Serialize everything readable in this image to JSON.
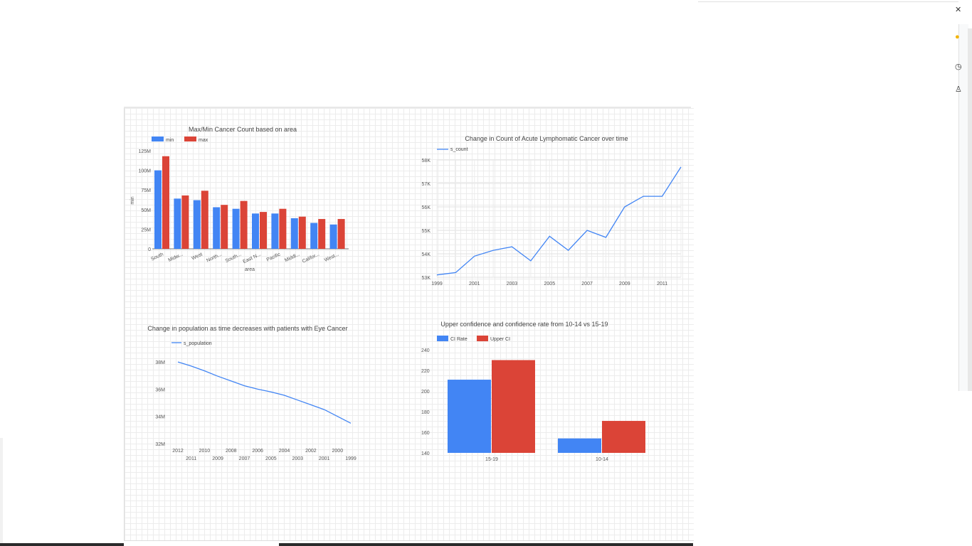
{
  "chart_data": [
    {
      "type": "bar",
      "title": "Max/Min Cancer Count based on area",
      "xlabel": "area",
      "ylabel": "min",
      "legend_position": "top-left",
      "categories": [
        "South",
        "Midw...",
        "West",
        "North...",
        "South...",
        "East N...",
        "Pacific",
        "Middl...",
        "Califor...",
        "West..."
      ],
      "series": [
        {
          "name": "min",
          "color": "#4285f4",
          "values": [
            100,
            64,
            62,
            53,
            51,
            45,
            45,
            39,
            33,
            31
          ]
        },
        {
          "name": "max",
          "color": "#db4437",
          "values": [
            118,
            68,
            74,
            56,
            61,
            47,
            51,
            41,
            38,
            38
          ]
        }
      ],
      "yticks": [
        "0",
        "25M",
        "50M",
        "75M",
        "100M",
        "125M"
      ],
      "ylim": [
        0,
        125
      ],
      "grid": false
    },
    {
      "type": "line",
      "title": "Change in Count of Acute Lymphomatic Cancer over time",
      "legend_position": "top-left",
      "series": [
        {
          "name": "s_count",
          "color": "#4285f4"
        }
      ],
      "x": [
        1999,
        2000,
        2001,
        2002,
        2003,
        2004,
        2005,
        2006,
        2007,
        2008,
        2009,
        2010,
        2011,
        2012
      ],
      "values": [
        53.1,
        53.2,
        53.9,
        54.15,
        54.3,
        53.7,
        54.75,
        54.15,
        55.0,
        54.7,
        56.0,
        56.45,
        56.45,
        57.7
      ],
      "xticks": [
        "1999",
        "2001",
        "2003",
        "2005",
        "2007",
        "2009",
        "2011"
      ],
      "yticks": [
        "53K",
        "54K",
        "55K",
        "56K",
        "57K",
        "58K"
      ],
      "ylim": [
        53,
        58
      ],
      "grid": true
    },
    {
      "type": "line",
      "title": "Change in population as time decreases with patients with Eye Cancer",
      "legend_position": "top-left",
      "series": [
        {
          "name": "s_population",
          "color": "#4285f4"
        }
      ],
      "x": [
        2012,
        2011,
        2010,
        2009,
        2008,
        2007,
        2006,
        2005,
        2004,
        2003,
        2002,
        2001,
        2000,
        1999
      ],
      "values": [
        38.0,
        37.7,
        37.35,
        36.95,
        36.6,
        36.25,
        36.0,
        35.8,
        35.55,
        35.2,
        34.85,
        34.5,
        34.0,
        33.5
      ],
      "xticks_top": [
        "2012",
        "2010",
        "2008",
        "2006",
        "2004",
        "2002",
        "2000"
      ],
      "xticks_bottom": [
        "2011",
        "2009",
        "2007",
        "2005",
        "2003",
        "2001",
        "1999"
      ],
      "yticks": [
        "32M",
        "34M",
        "36M",
        "38M"
      ],
      "ylim": [
        32,
        39
      ],
      "grid": false
    },
    {
      "type": "bar",
      "title": "Upper confidence and confidence rate from 10-14 vs 15-19",
      "legend_position": "top-left",
      "categories": [
        "15-19",
        "10-14"
      ],
      "series": [
        {
          "name": "CI Rate",
          "color": "#4285f4",
          "values": [
            211,
            154
          ]
        },
        {
          "name": "Upper CI",
          "color": "#db4437",
          "values": [
            230,
            171
          ]
        }
      ],
      "yticks": [
        "140",
        "160",
        "180",
        "200",
        "220",
        "240"
      ],
      "ylim": [
        140,
        240
      ],
      "grid": false
    }
  ]
}
